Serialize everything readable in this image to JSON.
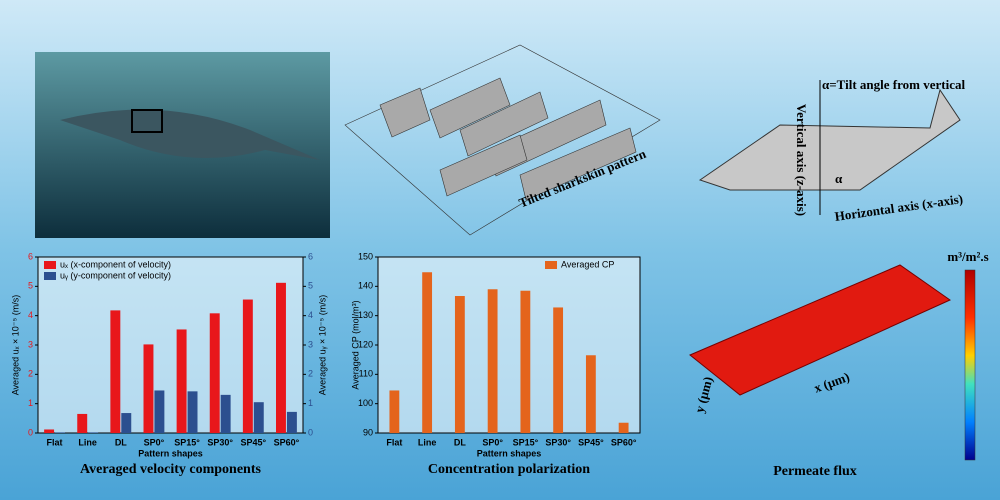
{
  "chart_data": [
    {
      "type": "bar",
      "title": "Averaged velocity components",
      "x_label": "Pattern shapes",
      "y_label": "Averaged uₓ × 10⁻⁵ (m/s)",
      "y2_label": "Averaged uᵧ × 10⁻⁵ (m/s)",
      "categories": [
        "Flat",
        "Line",
        "DL",
        "SP0°",
        "SP15°",
        "SP30°",
        "SP45°",
        "SP60°"
      ],
      "series": [
        {
          "name": "uₓ (x-component of velocity)",
          "color": "#e8171b",
          "values": [
            0.12,
            0.65,
            4.18,
            3.02,
            3.53,
            4.08,
            4.55,
            5.12
          ]
        },
        {
          "name": "uᵧ (y-component of velocity)",
          "color": "#2c4f8f",
          "axis": "y2",
          "values": [
            0.02,
            0.02,
            0.68,
            1.45,
            1.42,
            1.3,
            1.05,
            0.72
          ]
        }
      ],
      "ylim": [
        0,
        6
      ],
      "yticks": [
        0,
        1,
        2,
        3,
        4,
        5,
        6
      ],
      "y2lim": [
        0,
        6
      ],
      "y2ticks": [
        0,
        1,
        2,
        3,
        4,
        5,
        6
      ],
      "legend": "upper left"
    },
    {
      "type": "bar",
      "title": "Concentration polarization",
      "x_label": "Pattern shapes",
      "y_label": "Averaged CP (mol/m³)",
      "categories": [
        "Flat",
        "Line",
        "DL",
        "SP0°",
        "SP15°",
        "SP30°",
        "SP45°",
        "SP60°"
      ],
      "series": [
        {
          "name": "Averaged CP",
          "color": "#e4641c",
          "values": [
            104.5,
            144.8,
            136.7,
            139,
            138.5,
            132.8,
            116.5,
            93.5
          ]
        }
      ],
      "ylim": [
        90,
        150
      ],
      "yticks": [
        90,
        100,
        110,
        120,
        130,
        140,
        150
      ],
      "legend": "upper right"
    }
  ],
  "labels": {
    "pattern": "Tilted sharkskin pattern",
    "tilt": "α=Tilt angle from vertical",
    "vertical": "Vertical axis (z-axis)",
    "horizontal": "Horizontal axis (x-axis)",
    "alpha": "α",
    "flux_unit": "m³/m².s",
    "flux_y": "y (μm)",
    "flux_x": "x (μm)",
    "flux_title": "Permeate flux"
  }
}
